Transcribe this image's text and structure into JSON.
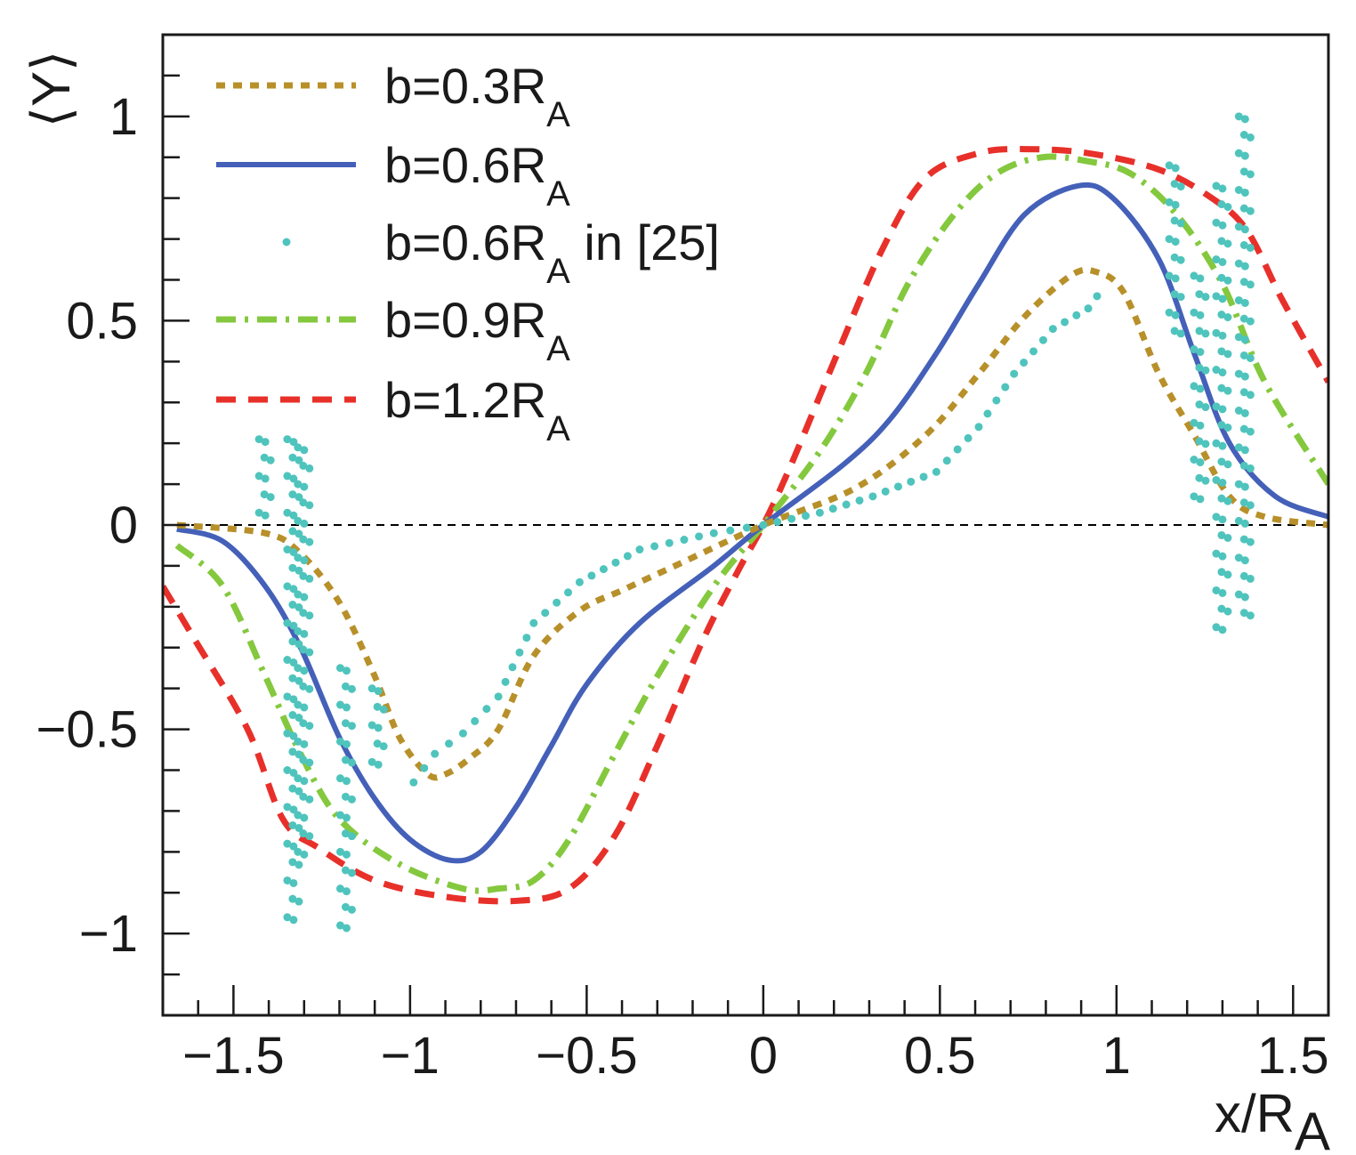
{
  "chart_data": {
    "type": "line",
    "title": "",
    "xlabel": "x/R",
    "xlabel_sub": "A",
    "ylabel": "⟨Y⟩",
    "xlim": [
      -1.7,
      1.6
    ],
    "ylim": [
      -1.2,
      1.2
    ],
    "grid": false,
    "reference_line": {
      "y": 0,
      "style": "dashed",
      "color": "#000000"
    },
    "x_ticks": [
      {
        "value": -1.5,
        "label": "−1.5"
      },
      {
        "value": -1.0,
        "label": "−1"
      },
      {
        "value": -0.5,
        "label": "−0.5"
      },
      {
        "value": 0.0,
        "label": "0"
      },
      {
        "value": 0.5,
        "label": "0.5"
      },
      {
        "value": 1.0,
        "label": "1"
      },
      {
        "value": 1.5,
        "label": "1.5"
      }
    ],
    "y_ticks": [
      {
        "value": -1.0,
        "label": "−1"
      },
      {
        "value": -0.5,
        "label": "−0.5"
      },
      {
        "value": 0.0,
        "label": "0"
      },
      {
        "value": 0.5,
        "label": "0.5"
      },
      {
        "value": 1.0,
        "label": "1"
      }
    ],
    "x_minor_step": 0.1,
    "y_minor_step": 0.1,
    "legend": {
      "position": "top-left"
    },
    "series": [
      {
        "name": "b=0.3R",
        "name_sub": "A",
        "style": "dotted",
        "color": "#b8902a",
        "x": [
          -1.66,
          -1.41,
          -1.31,
          -1.2,
          -1.1,
          -1.03,
          -0.95,
          -0.9,
          -0.83,
          -0.75,
          -0.65,
          -0.52,
          -0.4,
          -0.25,
          0,
          0.26,
          0.46,
          0.61,
          0.74,
          0.87,
          0.94,
          1.02,
          1.12,
          1.22,
          1.32,
          1.42,
          1.6
        ],
        "y": [
          0,
          -0.02,
          -0.07,
          -0.19,
          -0.37,
          -0.52,
          -0.61,
          -0.61,
          -0.57,
          -0.5,
          -0.32,
          -0.21,
          -0.16,
          -0.1,
          0,
          0.09,
          0.22,
          0.37,
          0.51,
          0.61,
          0.62,
          0.57,
          0.37,
          0.22,
          0.07,
          0.02,
          0.0
        ]
      },
      {
        "name": "b=0.6R",
        "name_sub": "A",
        "style": "solid",
        "color": "#4460b8",
        "x": [
          -1.66,
          -1.53,
          -1.41,
          -1.31,
          -1.2,
          -1.1,
          -1.0,
          -0.89,
          -0.8,
          -0.7,
          -0.6,
          -0.5,
          -0.35,
          -0.14,
          0,
          0.23,
          0.36,
          0.49,
          0.61,
          0.74,
          0.89,
          0.99,
          1.12,
          1.22,
          1.32,
          1.45,
          1.6
        ],
        "y": [
          -0.01,
          -0.04,
          -0.15,
          -0.3,
          -0.52,
          -0.67,
          -0.77,
          -0.82,
          -0.8,
          -0.69,
          -0.54,
          -0.39,
          -0.24,
          -0.1,
          0,
          0.15,
          0.26,
          0.42,
          0.59,
          0.76,
          0.83,
          0.8,
          0.65,
          0.42,
          0.2,
          0.07,
          0.02
        ]
      },
      {
        "name": "b=0.6R",
        "name_sub": "A",
        "name_suffix": " in [25]",
        "style": "markers",
        "color": "#4fc4bd",
        "x": [
          -0.99,
          -0.93,
          -0.85,
          -0.75,
          -0.65,
          -0.52,
          -0.35,
          -0.14,
          0,
          0.16,
          0.31,
          0.49,
          0.61,
          0.71,
          0.82,
          0.92,
          0.97
        ],
        "y": [
          -0.63,
          -0.56,
          -0.51,
          -0.42,
          -0.24,
          -0.14,
          -0.06,
          -0.02,
          0,
          0.03,
          0.07,
          0.13,
          0.24,
          0.37,
          0.48,
          0.53,
          0.59
        ],
        "oscillating_columns": [
          {
            "x": -1.42,
            "y_from": 0.21,
            "y_to": 0.01
          },
          {
            "x": -1.34,
            "y_from": 0.21,
            "y_to": -1.0
          },
          {
            "x": -1.31,
            "y_from": 0.19,
            "y_to": -0.8
          },
          {
            "x": -1.19,
            "y_from": -0.35,
            "y_to": -1.01
          },
          {
            "x": -1.1,
            "y_from": -0.4,
            "y_to": -0.62
          },
          {
            "x": 1.157,
            "y_from": 0.88,
            "y_to": 0.47
          },
          {
            "x": 1.227,
            "y_from": 0.61,
            "y_to": 0.05
          },
          {
            "x": 1.29,
            "y_from": 0.83,
            "y_to": -0.29
          },
          {
            "x": 1.354,
            "y_from": 1.0,
            "y_to": -0.23
          }
        ]
      },
      {
        "name": "b=0.9R",
        "name_sub": "A",
        "style": "dashdot",
        "color": "#84c83e",
        "x": [
          -1.66,
          -1.53,
          -1.41,
          -1.31,
          -1.2,
          -1.03,
          -0.85,
          -0.75,
          -0.65,
          -0.55,
          -0.42,
          -0.3,
          -0.14,
          0,
          0.16,
          0.29,
          0.41,
          0.54,
          0.66,
          0.79,
          0.92,
          1.04,
          1.17,
          1.3,
          1.42,
          1.6
        ],
        "y": [
          -0.05,
          -0.15,
          -0.37,
          -0.56,
          -0.72,
          -0.83,
          -0.89,
          -0.89,
          -0.87,
          -0.77,
          -0.56,
          -0.37,
          -0.15,
          0,
          0.18,
          0.37,
          0.59,
          0.76,
          0.86,
          0.9,
          0.89,
          0.86,
          0.76,
          0.59,
          0.35,
          0.1
        ]
      },
      {
        "name": "b=1.2R",
        "name_sub": "A",
        "style": "dashed",
        "color": "#e8302a",
        "x": [
          -1.7,
          -1.61,
          -1.46,
          -1.36,
          -1.26,
          -1.1,
          -0.9,
          -0.7,
          -0.55,
          -0.42,
          -0.3,
          -0.17,
          -0.07,
          0,
          0.08,
          0.21,
          0.34,
          0.46,
          0.61,
          0.74,
          0.92,
          1.12,
          1.27,
          1.37,
          1.47,
          1.6
        ],
        "y": [
          -0.15,
          -0.28,
          -0.5,
          -0.72,
          -0.79,
          -0.87,
          -0.91,
          -0.92,
          -0.89,
          -0.76,
          -0.54,
          -0.28,
          -0.11,
          0,
          0.15,
          0.42,
          0.68,
          0.85,
          0.91,
          0.92,
          0.91,
          0.87,
          0.8,
          0.72,
          0.55,
          0.35
        ]
      }
    ]
  }
}
